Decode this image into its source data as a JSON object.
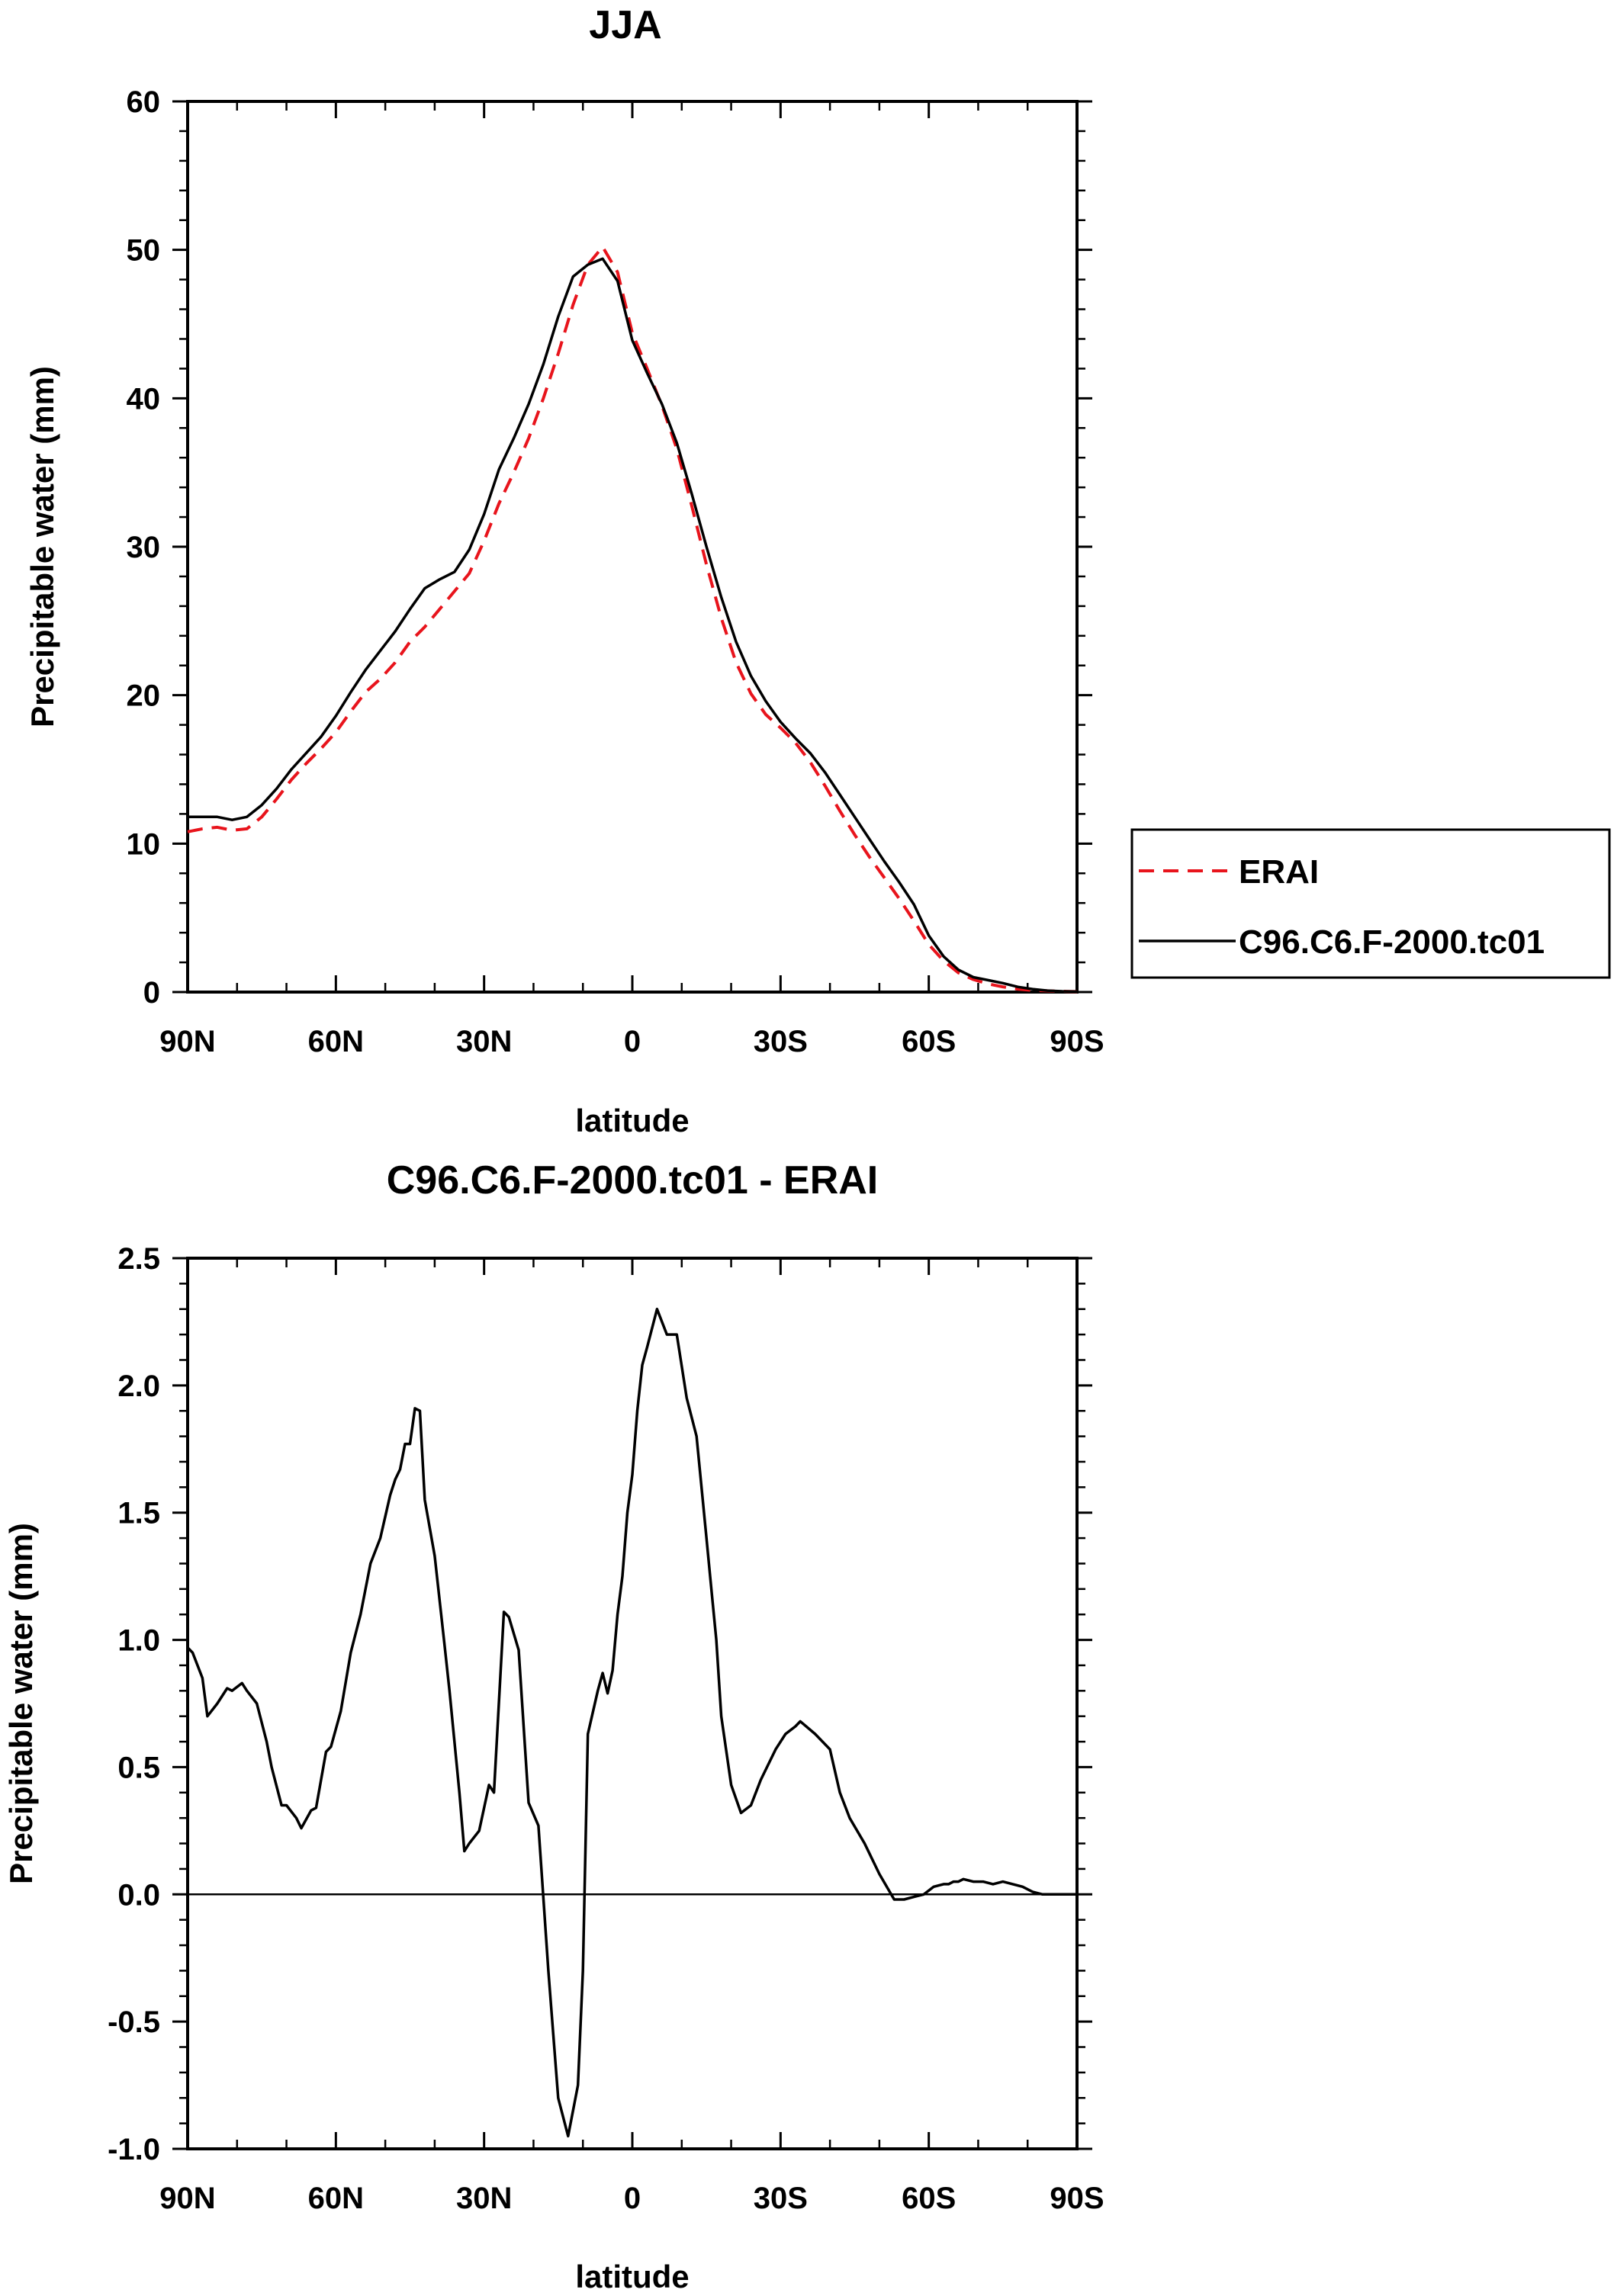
{
  "chart_data": [
    {
      "type": "line",
      "title": "JJA",
      "xlabel": "latitude",
      "ylabel": "Precipitable water (mm)",
      "xlim": [
        90,
        -90
      ],
      "ylim": [
        0,
        60
      ],
      "xticks": [
        90,
        60,
        30,
        0,
        -30,
        -60,
        -90
      ],
      "xtick_labels": [
        "90N",
        "60N",
        "30N",
        "0",
        "30S",
        "60S",
        "90S"
      ],
      "yticks": [
        0,
        10,
        20,
        30,
        40,
        50,
        60
      ],
      "ytick_labels": [
        "0",
        "10",
        "20",
        "30",
        "40",
        "50",
        "60"
      ],
      "grid": false,
      "legend_position": "right",
      "series": [
        {
          "name": "ERAI",
          "color": "#e8141c",
          "dash": "dashed",
          "x": [
            90,
            87,
            84,
            81,
            78,
            75,
            72,
            69,
            66,
            63,
            60,
            57,
            54,
            51,
            48,
            45,
            42,
            39,
            36,
            33,
            30,
            27,
            24,
            21,
            18,
            15,
            12,
            9,
            6,
            3,
            0,
            -3,
            -6,
            -9,
            -12,
            -15,
            -18,
            -21,
            -24,
            -27,
            -30,
            -33,
            -36,
            -39,
            -42,
            -45,
            -48,
            -51,
            -54,
            -57,
            -60,
            -63,
            -66,
            -69,
            -72,
            -75,
            -78,
            -81,
            -84,
            -87,
            -90
          ],
          "y": [
            10.8,
            11.0,
            11.1,
            10.9,
            11.0,
            11.8,
            13.0,
            14.3,
            15.4,
            16.4,
            17.5,
            18.9,
            20.2,
            21.1,
            22.2,
            23.6,
            24.6,
            25.8,
            27.0,
            28.2,
            30.4,
            32.9,
            35.0,
            37.3,
            40.0,
            43.0,
            46.3,
            49.0,
            50.2,
            48.5,
            44.4,
            42.0,
            39.5,
            36.6,
            32.8,
            28.8,
            25.2,
            22.2,
            20.1,
            18.7,
            17.8,
            16.8,
            15.5,
            13.9,
            12.2,
            10.6,
            9.1,
            7.7,
            6.3,
            4.8,
            3.2,
            2.1,
            1.3,
            0.85,
            0.55,
            0.35,
            0.2,
            0.12,
            0.08,
            0.05,
            0.03
          ]
        },
        {
          "name": "C96.C6.F-2000.tc01",
          "color": "#000000",
          "dash": "solid",
          "x": [
            90,
            87,
            84,
            81,
            78,
            75,
            72,
            69,
            66,
            63,
            60,
            57,
            54,
            51,
            48,
            45,
            42,
            39,
            36,
            33,
            30,
            27,
            24,
            21,
            18,
            15,
            12,
            9,
            6,
            3,
            0,
            -3,
            -6,
            -9,
            -12,
            -15,
            -18,
            -21,
            -24,
            -27,
            -30,
            -33,
            -36,
            -39,
            -42,
            -45,
            -48,
            -51,
            -54,
            -57,
            -60,
            -63,
            -66,
            -69,
            -72,
            -75,
            -78,
            -81,
            -84,
            -87,
            -90
          ],
          "y": [
            11.8,
            11.8,
            11.8,
            11.6,
            11.8,
            12.6,
            13.7,
            15.0,
            16.1,
            17.2,
            18.6,
            20.2,
            21.7,
            23.0,
            24.3,
            25.8,
            27.2,
            27.8,
            28.3,
            29.8,
            32.2,
            35.2,
            37.3,
            39.6,
            42.3,
            45.5,
            48.2,
            49.0,
            49.4,
            47.9,
            43.9,
            41.7,
            39.6,
            37.0,
            33.6,
            30.0,
            26.6,
            23.6,
            21.3,
            19.6,
            18.2,
            17.1,
            16.1,
            14.8,
            13.3,
            11.8,
            10.3,
            8.8,
            7.4,
            5.9,
            3.8,
            2.4,
            1.5,
            1.0,
            0.8,
            0.6,
            0.35,
            0.2,
            0.1,
            0.05,
            0.03
          ]
        }
      ]
    },
    {
      "type": "line",
      "title": "C96.C6.F-2000.tc01 - ERAI",
      "xlabel": "latitude",
      "ylabel": "Precipitable water (mm)",
      "xlim": [
        90,
        -90
      ],
      "ylim": [
        -1.0,
        2.5
      ],
      "xticks": [
        90,
        60,
        30,
        0,
        -30,
        -60,
        -90
      ],
      "xtick_labels": [
        "90N",
        "60N",
        "30N",
        "0",
        "30S",
        "60S",
        "90S"
      ],
      "yticks": [
        -1.0,
        -0.5,
        0.0,
        0.5,
        1.0,
        1.5,
        2.0,
        2.5
      ],
      "ytick_labels": [
        "-1.0",
        "-0.5",
        "0.0",
        "0.5",
        "1.0",
        "1.5",
        "2.0",
        "2.5"
      ],
      "grid": false,
      "series": [
        {
          "color": "#000000",
          "dash": "solid",
          "x": [
            90,
            89,
            87,
            86,
            84,
            82,
            81,
            79,
            78,
            76,
            74,
            73,
            71,
            70,
            68,
            67,
            65,
            64,
            62,
            61,
            59,
            57,
            55,
            53,
            51,
            49,
            48,
            47,
            46,
            45,
            44,
            43,
            42,
            40,
            38,
            37,
            35,
            34,
            33,
            31,
            29,
            28,
            26,
            25,
            23,
            21,
            19,
            17,
            15,
            13,
            11,
            10,
            9,
            7,
            6,
            5,
            4,
            3,
            2,
            1,
            0,
            -1,
            -2,
            -3,
            -5,
            -7,
            -9,
            -11,
            -13,
            -15,
            -16,
            -17,
            -18,
            -20,
            -22,
            -24,
            -26,
            -29,
            -31,
            -33,
            -34,
            -37,
            -40,
            -42,
            -44,
            -47,
            -50,
            -53,
            -55,
            -57,
            -59,
            -61,
            -63,
            -64,
            -65,
            -66,
            -67,
            -69,
            -71,
            -73,
            -75,
            -77,
            -79,
            -81,
            -83,
            -85,
            -87,
            -89,
            -90
          ],
          "y": [
            0.97,
            0.95,
            0.85,
            0.7,
            0.75,
            0.81,
            0.8,
            0.83,
            0.8,
            0.75,
            0.6,
            0.5,
            0.35,
            0.35,
            0.3,
            0.26,
            0.33,
            0.34,
            0.56,
            0.58,
            0.72,
            0.95,
            1.1,
            1.3,
            1.4,
            1.57,
            1.63,
            1.67,
            1.77,
            1.77,
            1.91,
            1.9,
            1.55,
            1.33,
            0.98,
            0.8,
            0.4,
            0.17,
            0.2,
            0.25,
            0.43,
            0.4,
            1.11,
            1.09,
            0.96,
            0.36,
            0.27,
            -0.3,
            -0.8,
            -0.95,
            -0.75,
            -0.3,
            0.63,
            0.8,
            0.87,
            0.79,
            0.88,
            1.1,
            1.25,
            1.5,
            1.65,
            1.9,
            2.08,
            2.15,
            2.3,
            2.2,
            2.2,
            1.95,
            1.8,
            1.4,
            1.2,
            1.0,
            0.7,
            0.43,
            0.32,
            0.35,
            0.45,
            0.57,
            0.63,
            0.66,
            0.68,
            0.63,
            0.57,
            0.4,
            0.3,
            0.2,
            0.08,
            -0.02,
            -0.02,
            -0.01,
            0.0,
            0.03,
            0.04,
            0.04,
            0.05,
            0.05,
            0.06,
            0.05,
            0.05,
            0.04,
            0.05,
            0.04,
            0.03,
            0.01,
            0.0,
            0.0,
            0.0,
            0.0,
            0.0
          ]
        }
      ]
    }
  ]
}
